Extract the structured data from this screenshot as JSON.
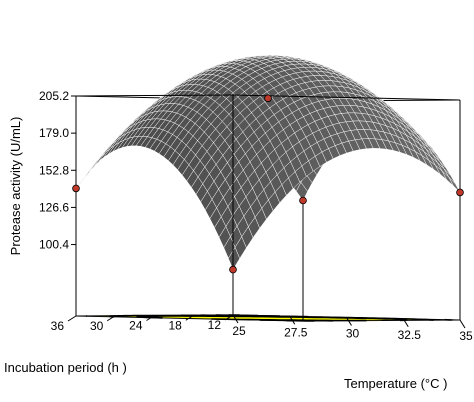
{
  "chart_data": {
    "type": "surface3d",
    "title": "",
    "x_axis": {
      "label": "Temperature (°C )",
      "ticks": [
        "25",
        "27.5",
        "30",
        "32.5",
        "35"
      ],
      "range": [
        25,
        35
      ]
    },
    "y_axis": {
      "label": "Incubation period (h )",
      "ticks": [
        "12",
        "18",
        "24",
        "30",
        "36"
      ],
      "range": [
        12,
        36
      ]
    },
    "z_axis": {
      "label": "Protease activity (U/mL)",
      "ticks": [
        "100.4",
        "126.6",
        "152.8",
        "179.0",
        "205.2"
      ],
      "range": [
        100.4,
        205.2
      ]
    },
    "surface_model": {
      "form": "quadratic",
      "center_temperature": 30.5,
      "center_period": 27,
      "peak": 205,
      "corner_values": {
        "t25_p12": 82,
        "t35_p12": 140,
        "t25_p36": 140,
        "t35_p36": 135
      }
    },
    "design_points": [
      {
        "temperature": 25,
        "period": 12,
        "activity": 82
      },
      {
        "temperature": 35,
        "period": 12,
        "activity": 140
      },
      {
        "temperature": 25,
        "period": 36,
        "activity": 140
      },
      {
        "temperature": 35,
        "period": 36,
        "activity": 135
      },
      {
        "temperature": 30,
        "period": 24,
        "activity": 205
      }
    ],
    "surface_color": "#4a4a4a",
    "mesh_color": "#ffffff",
    "contour_fill": "#ffff00",
    "contour_line": "#000000",
    "point_color": "#c0392b"
  }
}
